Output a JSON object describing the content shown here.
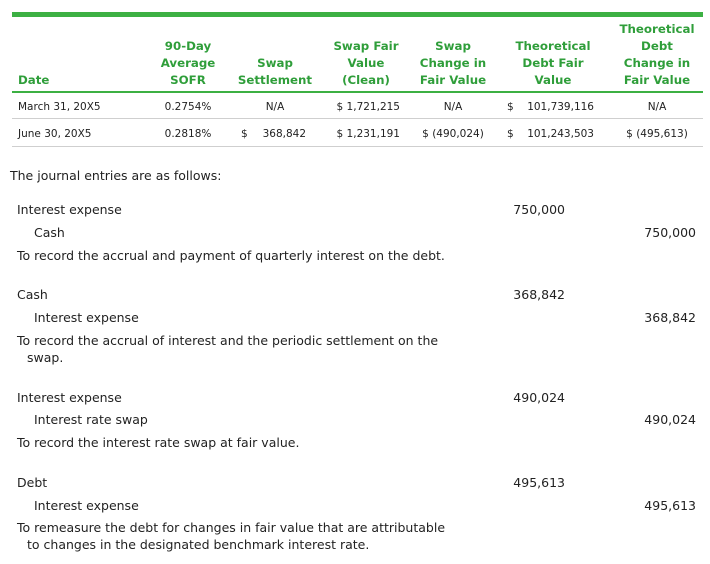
{
  "colors": {
    "accent": "#3cb043",
    "header_text": "#2f9e3a"
  },
  "table": {
    "headers": {
      "date": [
        "Date"
      ],
      "sofr": [
        "90-Day",
        "Average",
        "SOFR"
      ],
      "settlement": [
        "Swap",
        "Settlement"
      ],
      "swap_fv": [
        "Swap Fair",
        "Value",
        "(Clean)"
      ],
      "swap_change": [
        "Swap",
        "Change in",
        "Fair Value"
      ],
      "debt_fv": [
        "Theoretical",
        "Debt Fair",
        "Value"
      ],
      "debt_change": [
        "Theoretical",
        "Debt",
        "Change in",
        "Fair Value"
      ]
    },
    "rows": [
      {
        "date": "March 31, 20X5",
        "sofr": "0.2754%",
        "settlement_sym": "",
        "settlement": "N/A",
        "swap_fv": "$ 1,721,215",
        "swap_change": "N/A",
        "debt_fv_sym": "$",
        "debt_fv": "101,739,116",
        "debt_change": "N/A"
      },
      {
        "date": "June 30, 20X5",
        "sofr": "0.2818%",
        "settlement_sym": "$",
        "settlement": "368,842",
        "swap_fv": "$ 1,231,191",
        "swap_change": "$  (490,024)",
        "debt_fv_sym": "$",
        "debt_fv": "101,243,503",
        "debt_change": "$  (495,613)"
      }
    ]
  },
  "intro": "The journal entries are as follows:",
  "entries": [
    {
      "debit_account": "Interest expense",
      "debit_amount": "750,000",
      "credit_account": "Cash",
      "credit_amount": "750,000",
      "memo": [
        "To record the accrual and payment of quarterly interest on the debt."
      ]
    },
    {
      "debit_account": "Cash",
      "debit_amount": "368,842",
      "credit_account": "Interest expense",
      "credit_amount": "368,842",
      "memo": [
        "To record the accrual of interest and the periodic settlement on the",
        "swap."
      ]
    },
    {
      "debit_account": "Interest expense",
      "debit_amount": "490,024",
      "credit_account": "Interest rate swap",
      "credit_amount": "490,024",
      "memo": [
        "To record the interest rate swap at fair value."
      ]
    },
    {
      "debit_account": "Debt",
      "debit_amount": "495,613",
      "credit_account": "Interest expense",
      "credit_amount": "495,613",
      "memo": [
        "To remeasure the debt for changes in fair value that are attributable",
        "to changes in the designated benchmark interest rate."
      ]
    }
  ]
}
